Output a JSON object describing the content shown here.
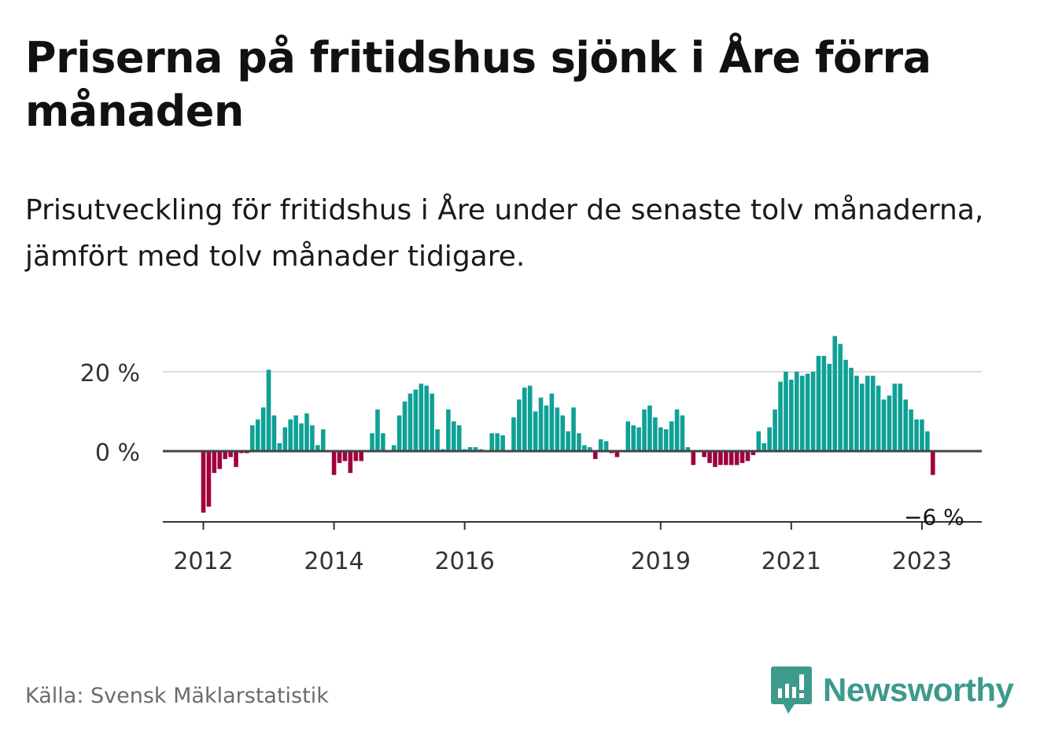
{
  "title": "Priserna på fritidshus sjönk i Åre förra månaden",
  "subtitle": "Prisutveckling för fritidshus i Åre under de senaste tolv månaderna, jämfört med tolv månader tidigare.",
  "source": "Källa: Svensk Mäklarstatistik",
  "brand": "Newsworthy",
  "colors": {
    "positive": "#0fa196",
    "negative": "#a0003e",
    "accent": "#3d9a8c"
  },
  "chart_data": {
    "type": "bar",
    "unit": "%",
    "first_month": "2012-01",
    "y_ticks": [
      {
        "value": 0,
        "label": "0 %"
      },
      {
        "value": 20,
        "label": "20 %"
      }
    ],
    "x_ticks": [
      {
        "month": "2012-01",
        "label": "2012"
      },
      {
        "month": "2014-01",
        "label": "2014"
      },
      {
        "month": "2016-01",
        "label": "2016"
      },
      {
        "month": "2019-01",
        "label": "2019"
      },
      {
        "month": "2021-01",
        "label": "2021"
      },
      {
        "month": "2023-01",
        "label": "2023"
      }
    ],
    "ylim": [
      -18,
      30
    ],
    "gridlines": true,
    "last_label": "−6 %",
    "values": [
      -15.5,
      -14,
      -5.5,
      -4.5,
      -2,
      -1.5,
      -4,
      -0.5,
      -0.5,
      6.5,
      8,
      11,
      20.5,
      9,
      2,
      6,
      8,
      9,
      7,
      9.5,
      6.5,
      1.5,
      5.5,
      0,
      -6,
      -3,
      -2.5,
      -5.5,
      -2.5,
      -2.5,
      0,
      4.5,
      10.5,
      4.5,
      0,
      1.5,
      9,
      12.5,
      14.5,
      15.5,
      17,
      16.5,
      14.5,
      5.5,
      0.5,
      10.5,
      7.5,
      6.5,
      0.5,
      1,
      1,
      0.5,
      0,
      4.5,
      4.5,
      4,
      0,
      8.5,
      13,
      16,
      16.5,
      10,
      13.5,
      11.5,
      14.5,
      11,
      9,
      5,
      11,
      4.5,
      1.5,
      1,
      -2,
      3,
      2.5,
      -0.5,
      -1.5,
      0,
      7.5,
      6.5,
      6,
      10.5,
      11.5,
      8.5,
      6,
      5.5,
      7.5,
      10.5,
      9,
      1,
      -3.5,
      0,
      -1.5,
      -3,
      -4,
      -3.5,
      -3.5,
      -3.5,
      -3.5,
      -3,
      -2.5,
      -1,
      5,
      2,
      6,
      10.5,
      17.5,
      20,
      18,
      20,
      19,
      19.5,
      20,
      24,
      24,
      22,
      29,
      27,
      23,
      21,
      19,
      17,
      19,
      19,
      16.5,
      13,
      14,
      17,
      17,
      13,
      10.5,
      8,
      8,
      5,
      -6
    ]
  }
}
